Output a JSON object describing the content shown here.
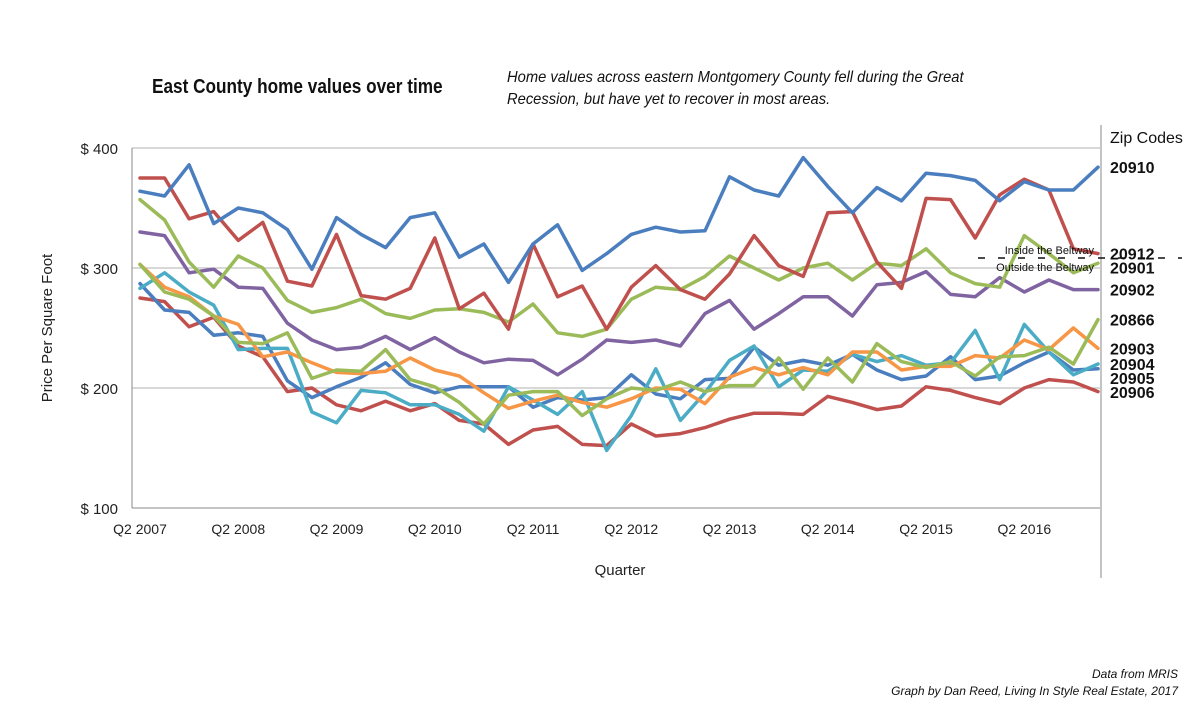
{
  "header": {
    "title": "East County home values over time",
    "subtitle": "Home values across eastern Montgomery County fell during the Great Recession, but have yet to recover in most areas."
  },
  "credits": {
    "line1": "Data from MRIS",
    "line2": "Graph by Dan Reed, Living In Style Real Estate, 2017"
  },
  "legend": {
    "heading": "Zip Codes",
    "inside_label": "Inside the Beltway",
    "outside_label": "Outside the Beltway"
  },
  "chart_data": {
    "type": "line",
    "xlabel": "Quarter",
    "ylabel": "Price Per Square Foot",
    "ylim": [
      100,
      400
    ],
    "yticks": [
      100,
      200,
      300,
      400
    ],
    "ytick_labels": [
      "$ 100",
      "$ 200",
      "$ 300",
      "$ 400"
    ],
    "x": [
      "Q2 2007",
      "Q3 2007",
      "Q4 2007",
      "Q1 2008",
      "Q2 2008",
      "Q3 2008",
      "Q4 2008",
      "Q1 2009",
      "Q2 2009",
      "Q3 2009",
      "Q4 2009",
      "Q1 2010",
      "Q2 2010",
      "Q3 2010",
      "Q4 2010",
      "Q1 2011",
      "Q2 2011",
      "Q3 2011",
      "Q4 2011",
      "Q1 2012",
      "Q2 2012",
      "Q3 2012",
      "Q4 2012",
      "Q1 2013",
      "Q2 2013",
      "Q3 2013",
      "Q4 2013",
      "Q1 2014",
      "Q2 2014",
      "Q3 2014",
      "Q4 2014",
      "Q1 2015",
      "Q2 2015",
      "Q3 2015",
      "Q4 2015",
      "Q1 2016",
      "Q2 2016",
      "Q3 2016",
      "Q4 2016",
      "Q1 2017"
    ],
    "xtick_labels": [
      "Q2 2007",
      "Q2 2008",
      "Q2 2009",
      "Q2 2010",
      "Q2 2011",
      "Q2 2012",
      "Q2 2013",
      "Q2 2014",
      "Q2 2015",
      "Q2 2016"
    ],
    "grid": "horizontal",
    "legend_placement": "right",
    "series": [
      {
        "name": "20910",
        "color": "#4a7ebf",
        "values": [
          364,
          360,
          386,
          337,
          350,
          346,
          332,
          299,
          342,
          328,
          317,
          342,
          346,
          309,
          320,
          288,
          320,
          336,
          298,
          312,
          328,
          334,
          330,
          331,
          376,
          365,
          360,
          392,
          368,
          346,
          367,
          356,
          379,
          377,
          373,
          356,
          372,
          365,
          365,
          384
        ]
      },
      {
        "name": "20912",
        "color": "#c0504d",
        "values": [
          375,
          375,
          341,
          347,
          323,
          338,
          289,
          285,
          328,
          277,
          274,
          283,
          325,
          266,
          279,
          249,
          320,
          276,
          285,
          249,
          284,
          302,
          282,
          274,
          295,
          327,
          302,
          293,
          346,
          347,
          305,
          283,
          358,
          357,
          325,
          361,
          374,
          365,
          316,
          312
        ]
      },
      {
        "name": "20901",
        "color": "#9bbb59",
        "values": [
          357,
          340,
          305,
          284,
          310,
          300,
          273,
          263,
          267,
          274,
          262,
          258,
          265,
          266,
          263,
          255,
          270,
          246,
          243,
          249,
          274,
          284,
          282,
          293,
          310,
          300,
          290,
          300,
          304,
          290,
          304,
          302,
          316,
          296,
          287,
          284,
          327,
          312,
          296,
          304
        ]
      },
      {
        "name": "20902",
        "color": "#8064a2",
        "values": [
          330,
          327,
          296,
          299,
          284,
          283,
          254,
          240,
          232,
          234,
          243,
          232,
          242,
          230,
          221,
          224,
          223,
          211,
          224,
          240,
          238,
          240,
          235,
          262,
          273,
          249,
          262,
          276,
          276,
          260,
          286,
          288,
          297,
          278,
          276,
          292,
          280,
          290,
          282,
          282
        ]
      },
      {
        "name": "20866",
        "color": "#9bbb59",
        "values": [
          303,
          280,
          274,
          260,
          238,
          237,
          246,
          208,
          215,
          214,
          232,
          207,
          201,
          188,
          170,
          194,
          197,
          197,
          177,
          191,
          200,
          198,
          205,
          197,
          202,
          202,
          225,
          199,
          225,
          205,
          237,
          222,
          217,
          222,
          210,
          226,
          227,
          234,
          220,
          257
        ]
      },
      {
        "name": "20903",
        "color": "#f79646",
        "values": [
          303,
          284,
          276,
          260,
          253,
          226,
          230,
          221,
          213,
          212,
          214,
          225,
          215,
          210,
          196,
          183,
          189,
          194,
          188,
          184,
          191,
          200,
          199,
          187,
          209,
          217,
          211,
          217,
          211,
          230,
          230,
          215,
          218,
          218,
          227,
          225,
          240,
          232,
          250,
          233
        ]
      },
      {
        "name": "20904",
        "color": "#4bacc6",
        "values": [
          283,
          296,
          280,
          269,
          232,
          233,
          233,
          180,
          171,
          198,
          196,
          186,
          186,
          178,
          164,
          201,
          190,
          178,
          197,
          148,
          177,
          216,
          173,
          196,
          223,
          235,
          201,
          215,
          214,
          228,
          222,
          227,
          219,
          221,
          248,
          207,
          253,
          230,
          211,
          220
        ]
      },
      {
        "name": "20905",
        "color": "#4a7ebf",
        "values": [
          287,
          265,
          263,
          244,
          246,
          243,
          206,
          192,
          201,
          209,
          221,
          203,
          196,
          201,
          201,
          201,
          184,
          192,
          190,
          192,
          211,
          195,
          191,
          207,
          208,
          234,
          219,
          223,
          219,
          228,
          215,
          207,
          210,
          226,
          207,
          210,
          221,
          230,
          215,
          216
        ]
      },
      {
        "name": "20906",
        "color": "#c0504d",
        "values": [
          275,
          272,
          251,
          259,
          235,
          226,
          197,
          200,
          186,
          181,
          189,
          181,
          187,
          173,
          170,
          153,
          165,
          168,
          153,
          152,
          170,
          160,
          162,
          167,
          174,
          179,
          179,
          178,
          193,
          188,
          182,
          185,
          201,
          198,
          192,
          187,
          200,
          207,
          205,
          197
        ]
      }
    ]
  }
}
